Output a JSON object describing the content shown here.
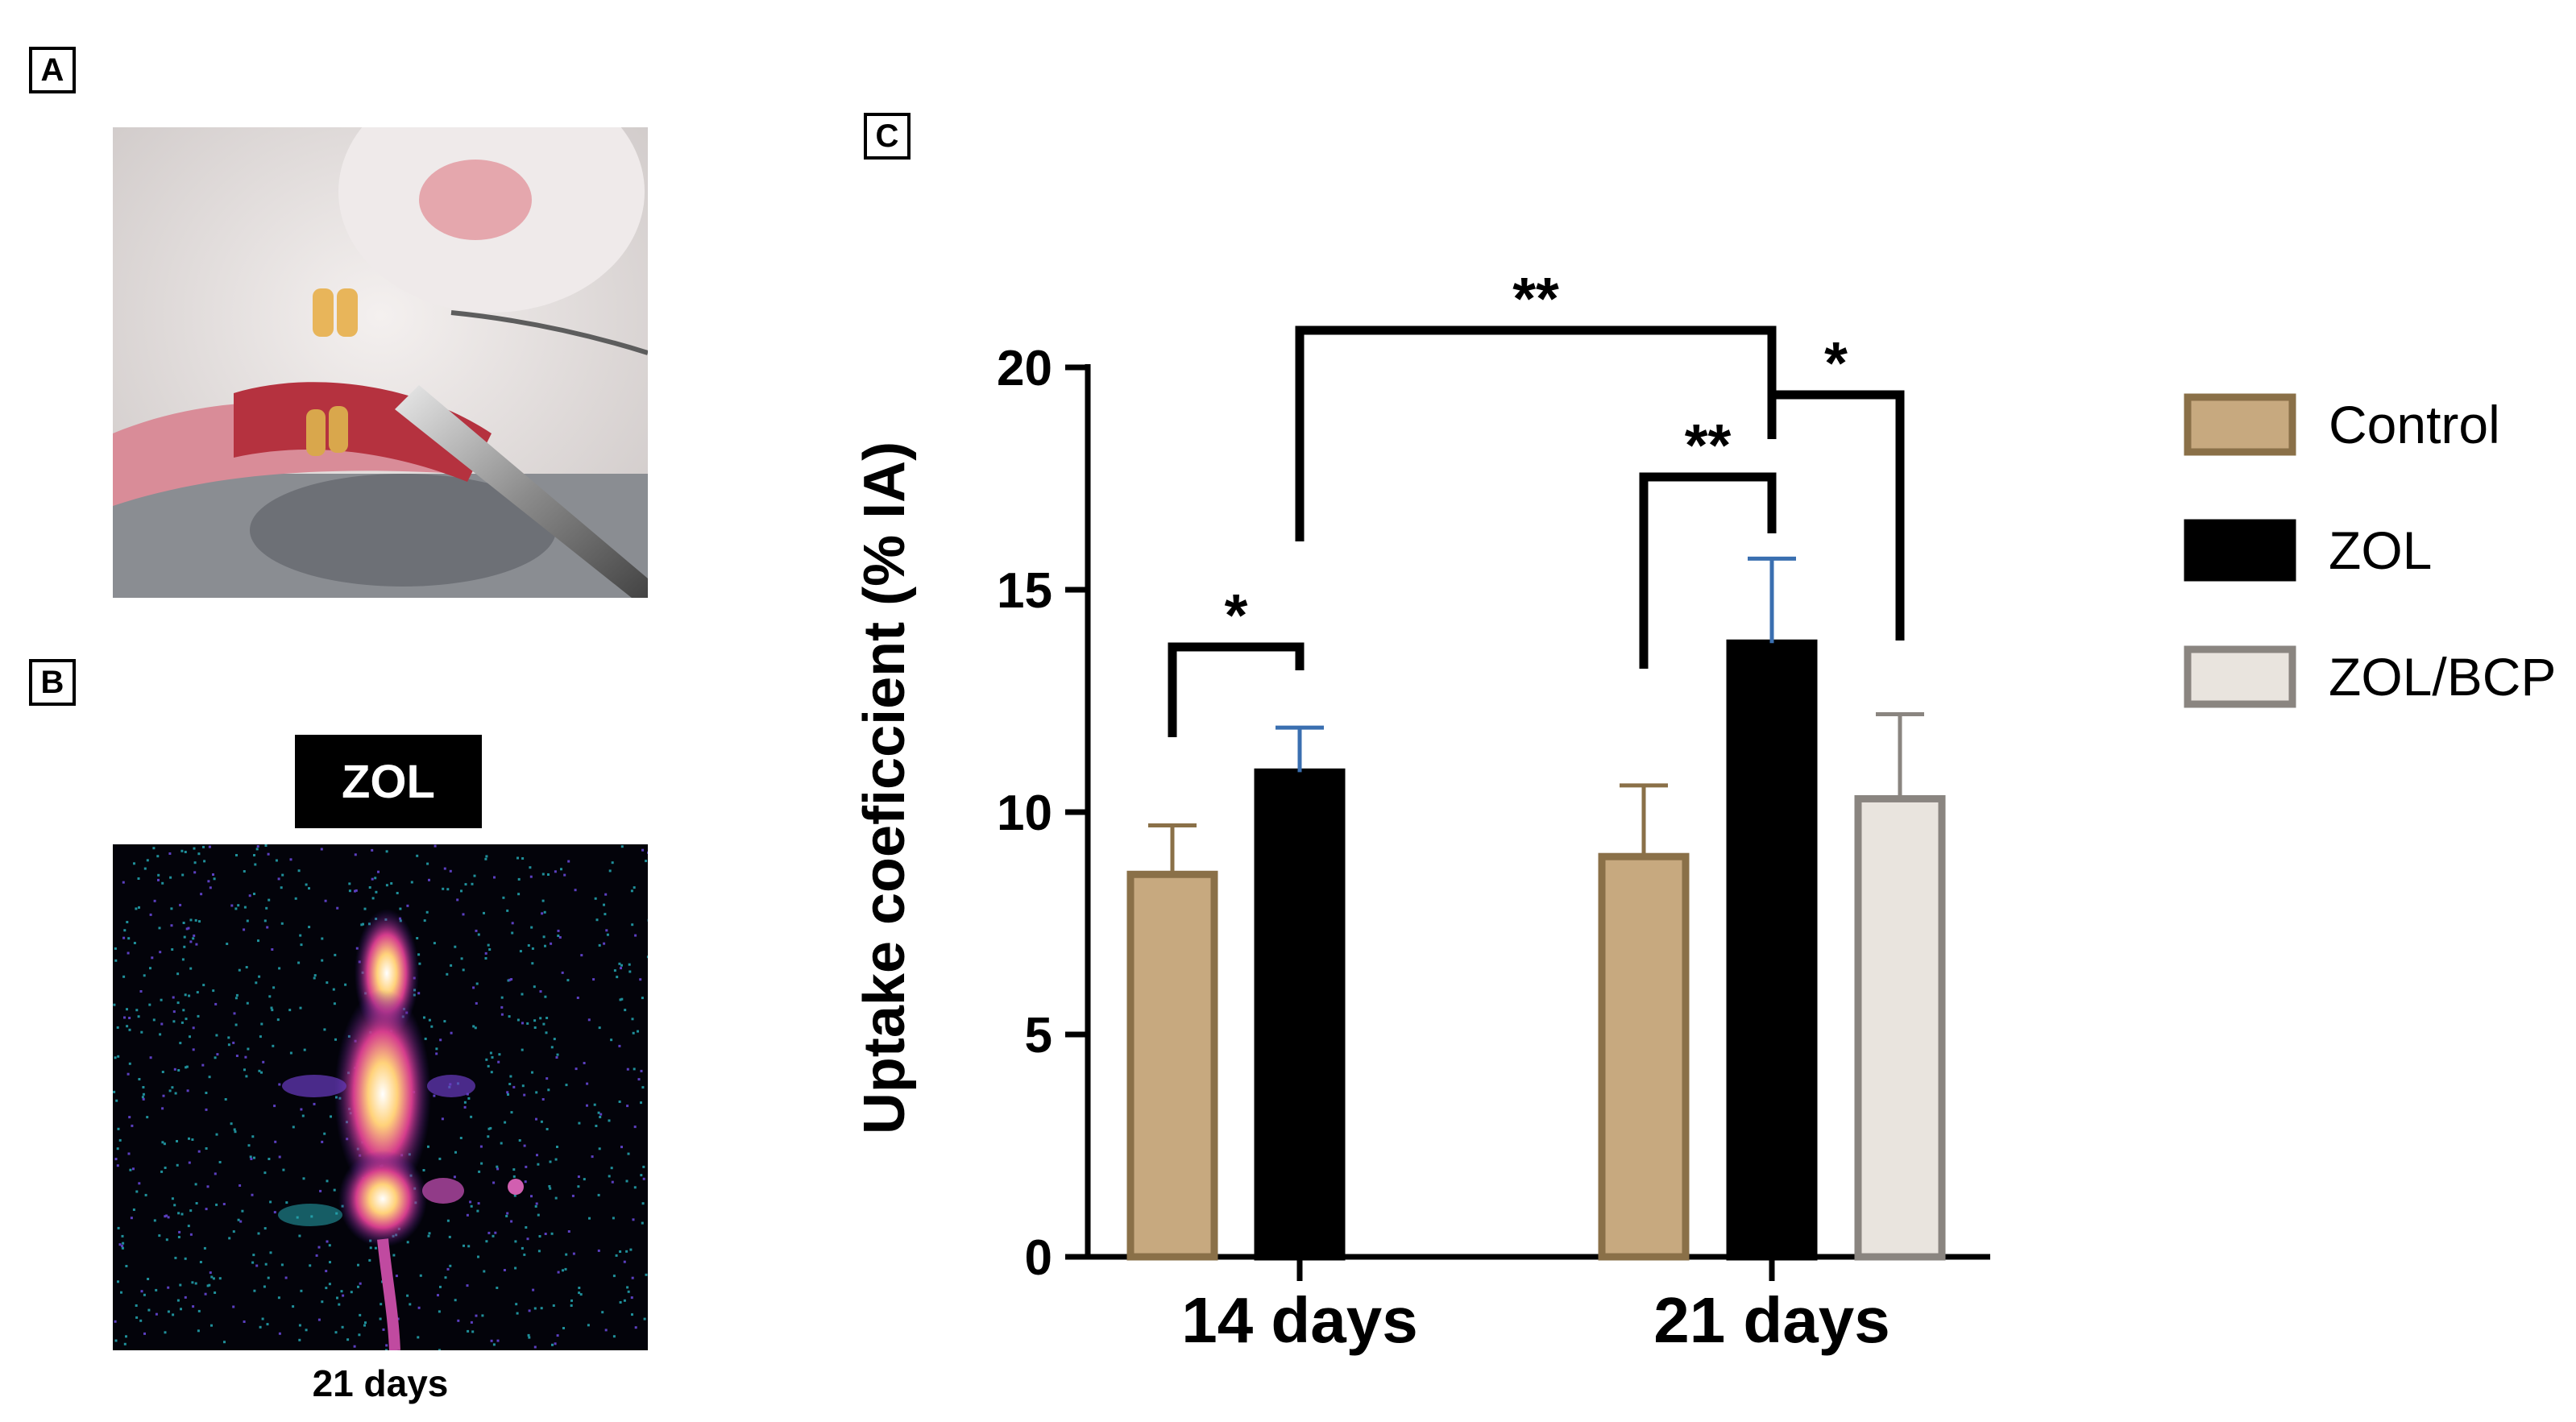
{
  "panels": {
    "a_label": "A",
    "b_label": "B",
    "c_label": "C"
  },
  "panel_b": {
    "title": "ZOL",
    "caption": "21 days"
  },
  "chart_data": {
    "type": "bar",
    "ylabel": "Uptake coeficcient (% IA)",
    "xlabel": "",
    "ylim": [
      0,
      20
    ],
    "yticks": [
      "0",
      "5",
      "10",
      "15",
      "20"
    ],
    "categories": [
      "14 days",
      "21 days"
    ],
    "series": [
      {
        "name": "Control",
        "values": [
          8.6,
          9.0
        ],
        "errors": [
          1.1,
          1.6
        ],
        "fill": "#c7a97f",
        "stroke": "#8a7048",
        "error_color": "#8a7048"
      },
      {
        "name": "ZOL",
        "values": [
          10.9,
          13.8
        ],
        "errors": [
          1.0,
          1.9
        ],
        "fill": "#000000",
        "stroke": "#000000",
        "error_color": "#3a6fb0"
      },
      {
        "name": "ZOL/BCP",
        "values": [
          null,
          10.3
        ],
        "errors": [
          null,
          1.9
        ],
        "fill": "#e9e4de",
        "stroke": "#8a8580",
        "error_color": "#8a8580"
      }
    ],
    "significance": [
      {
        "label": "*",
        "from": "Control 14 days",
        "to": "ZOL 14 days"
      },
      {
        "label": "**",
        "from": "ZOL 14 days",
        "to": "ZOL 21 days"
      },
      {
        "label": "**",
        "from": "Control 21 days",
        "to": "ZOL 21 days"
      },
      {
        "label": "*",
        "from": "ZOL 21 days",
        "to": "ZOL/BCP 21 days"
      }
    ],
    "legend_position": "right"
  }
}
